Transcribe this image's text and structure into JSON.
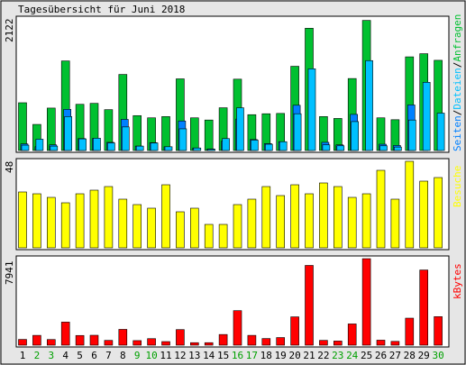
{
  "title": "Tagesübersicht für Juni 2018",
  "panels": {
    "top": {
      "max_label": "2122",
      "legend": [
        "Seiten",
        "Dateien",
        "Anfragen"
      ]
    },
    "middle": {
      "max_label": "48",
      "legend": "Besuche"
    },
    "bottom": {
      "max_label": "7941",
      "legend": "kBytes"
    }
  },
  "colors": {
    "anfragen": "#00c030",
    "dateien": "#00c0ff",
    "seiten": "#0080ff",
    "besuche": "#ffff00",
    "kbytes": "#ff0000",
    "weekend_label": "#00a000",
    "title": "#000000"
  },
  "chart_data": [
    {
      "type": "bar",
      "title": "Tagesübersicht für Juni 2018",
      "categories": [
        "1",
        "2",
        "3",
        "4",
        "5",
        "6",
        "7",
        "8",
        "9",
        "10",
        "11",
        "12",
        "13",
        "14",
        "15",
        "16",
        "17",
        "18",
        "19",
        "20",
        "21",
        "22",
        "23",
        "24",
        "25",
        "26",
        "27",
        "28",
        "29",
        "30"
      ],
      "weekend_days": [
        "2",
        "3",
        "9",
        "10",
        "16",
        "17",
        "23",
        "24",
        "30"
      ],
      "ylim": [
        0,
        2122
      ],
      "series": [
        {
          "name": "Anfragen",
          "values": [
            760,
            415,
            675,
            1425,
            735,
            750,
            650,
            1210,
            555,
            520,
            540,
            1140,
            520,
            485,
            680,
            1135,
            570,
            585,
            590,
            1340,
            1945,
            540,
            510,
            1145,
            2070,
            520,
            490,
            1490,
            1540,
            1435
          ]
        },
        {
          "name": "Dateien",
          "values": [
            85,
            180,
            70,
            540,
            185,
            195,
            120,
            375,
            70,
            120,
            60,
            345,
            40,
            20,
            190,
            680,
            165,
            100,
            140,
            585,
            1300,
            90,
            75,
            460,
            1430,
            75,
            55,
            485,
            1085,
            595
          ]
        },
        {
          "name": "Seiten",
          "values": [
            105,
            60,
            90,
            655,
            190,
            190,
            130,
            495,
            70,
            125,
            60,
            470,
            40,
            25,
            150,
            500,
            175,
            110,
            140,
            720,
            1,
            130,
            90,
            575,
            1,
            100,
            80,
            725,
            1,
            1
          ]
        }
      ]
    },
    {
      "type": "bar",
      "categories": [
        "1",
        "2",
        "3",
        "4",
        "5",
        "6",
        "7",
        "8",
        "9",
        "10",
        "11",
        "12",
        "13",
        "14",
        "15",
        "16",
        "17",
        "18",
        "19",
        "20",
        "21",
        "22",
        "23",
        "24",
        "25",
        "26",
        "27",
        "28",
        "29",
        "30"
      ],
      "ylim": [
        0,
        48
      ],
      "series": [
        {
          "name": "Besuche",
          "values": [
            31,
            30,
            28,
            25,
            30,
            32,
            34,
            27,
            24,
            22,
            35,
            20,
            22,
            13,
            13,
            24,
            27,
            34,
            29,
            35,
            30,
            36,
            34,
            28,
            30,
            43,
            27,
            48,
            37,
            39
          ]
        }
      ]
    },
    {
      "type": "bar",
      "categories": [
        "1",
        "2",
        "3",
        "4",
        "5",
        "6",
        "7",
        "8",
        "9",
        "10",
        "11",
        "12",
        "13",
        "14",
        "15",
        "16",
        "17",
        "18",
        "19",
        "20",
        "21",
        "22",
        "23",
        "24",
        "25",
        "26",
        "27",
        "28",
        "29",
        "30"
      ],
      "ylim": [
        0,
        7941
      ],
      "series": [
        {
          "name": "kBytes",
          "values": [
            530,
            900,
            520,
            2120,
            890,
            910,
            440,
            1450,
            420,
            600,
            330,
            1430,
            230,
            230,
            980,
            3170,
            900,
            610,
            700,
            2600,
            7320,
            440,
            380,
            1950,
            7940,
            460,
            350,
            2480,
            6900,
            2620
          ]
        }
      ]
    }
  ]
}
